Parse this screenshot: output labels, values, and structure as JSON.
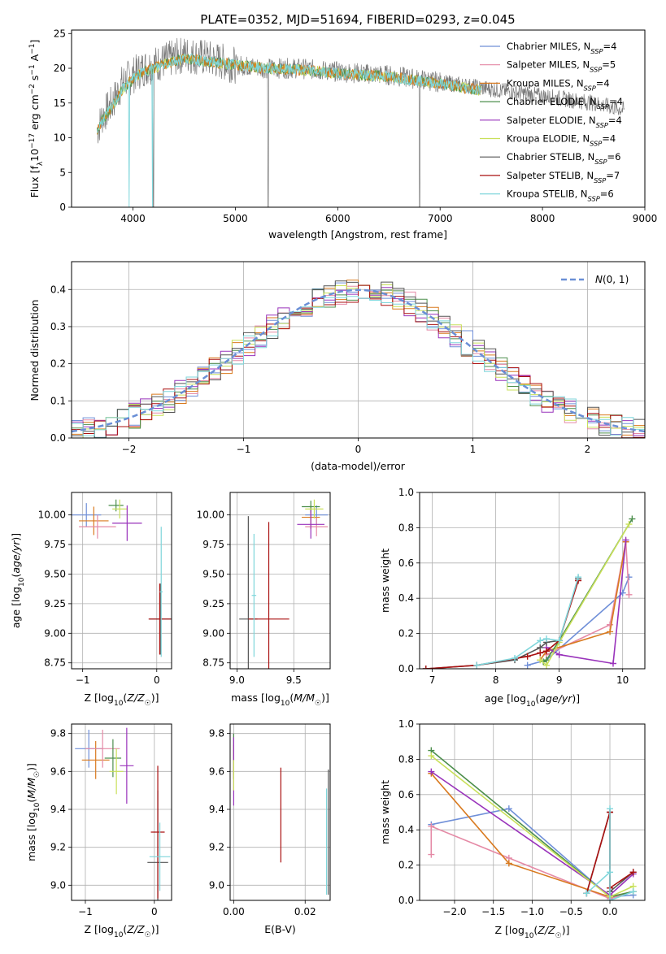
{
  "figure": {
    "title": "PLATE=0352, MJD=51694, FIBERID=0293, z=0.045",
    "colors": {
      "Chabrier MILES": "#6f8fd8",
      "Salpeter MILES": "#e58aa6",
      "Kroupa MILES": "#d97a1f",
      "Chabrier ELODIE": "#4d8f4d",
      "Salpeter ELODIE": "#9933bb",
      "Kroupa ELODIE": "#c9e05a",
      "Chabrier STELIB": "#555555",
      "Salpeter STELIB": "#aa1111",
      "Kroupa STELIB": "#7fd6db"
    }
  },
  "chart_data": [
    {
      "id": "spectrum",
      "type": "line",
      "xlabel": "wavelength [Angstrom, rest frame]",
      "ylabel": "Flux [f_λ10^-17 erg cm^-2 s^-1 A^-1]",
      "xlim": [
        3400,
        9000
      ],
      "ylim": [
        0,
        25.5
      ],
      "xticks": [
        "4000",
        "5000",
        "6000",
        "7000",
        "8000",
        "9000"
      ],
      "yticks": [
        "0",
        "5",
        "10",
        "15",
        "20",
        "25"
      ],
      "grid": false,
      "legend_position": "top-right",
      "legend": [
        {
          "label": "Chabrier MILES, N",
          "sub": "SSP",
          "val": "=4"
        },
        {
          "label": "Salpeter MILES, N",
          "sub": "SSP",
          "val": "=5"
        },
        {
          "label": "Kroupa MILES, N",
          "sub": "SSP",
          "val": "=4"
        },
        {
          "label": "Chabrier ELODIE, N",
          "sub": "SSP",
          "val": "=4"
        },
        {
          "label": "Salpeter ELODIE, N",
          "sub": "SSP",
          "val": "=4"
        },
        {
          "label": "Kroupa ELODIE, N",
          "sub": "SSP",
          "val": "=4"
        },
        {
          "label": "Chabrier STELIB, N",
          "sub": "SSP",
          "val": "=6"
        },
        {
          "label": "Salpeter STELIB, N",
          "sub": "SSP",
          "val": "=7"
        },
        {
          "label": "Kroupa STELIB, N",
          "sub": "SSP",
          "val": "=6"
        }
      ],
      "data_continuum": {
        "x": [
          3650,
          3700,
          3800,
          3900,
          4000,
          4100,
          4200,
          4300,
          4400,
          4500,
          4700,
          5000,
          5300,
          5600,
          6000,
          6500,
          7000,
          7500,
          8000,
          8500,
          8800
        ],
        "y": [
          11,
          13,
          15,
          18,
          19,
          20,
          20.5,
          21,
          21.5,
          22,
          21.5,
          20.5,
          20,
          20,
          19.5,
          19,
          18,
          17,
          16,
          15,
          14
        ]
      },
      "model_continuum": {
        "x": [
          3650,
          3700,
          3800,
          3900,
          4000,
          4100,
          4200,
          4300,
          4400,
          4500,
          4700,
          5000,
          5300,
          5600,
          6000,
          6500,
          7000,
          7400
        ],
        "y": [
          11,
          12.5,
          14.5,
          17,
          18.5,
          19.5,
          20,
          20.5,
          21,
          21.5,
          21,
          20.5,
          20,
          19.8,
          19.3,
          18.8,
          17.8,
          16.8
        ]
      }
    },
    {
      "id": "residuals",
      "type": "bar",
      "xlabel": "(data-model)/error",
      "ylabel": "Normed distribution",
      "xlim": [
        -2.5,
        2.5
      ],
      "ylim": [
        0,
        0.475
      ],
      "xticks": [
        "−2",
        "−1",
        "0",
        "1",
        "2"
      ],
      "yticks": [
        "0.0",
        "0.1",
        "0.2",
        "0.3",
        "0.4"
      ],
      "grid": true,
      "legend_position": "top-right",
      "legend_label": "N(0,1)",
      "bin_width": 0.1
    },
    {
      "id": "age_vs_Z",
      "type": "scatter",
      "xlabel": "Z [log10(Z/Z☉)]",
      "ylabel": "age  [log10(age/yr)]",
      "xlim": [
        -1.15,
        0.2
      ],
      "ylim": [
        8.7,
        10.19
      ],
      "xticks": [
        "−1",
        "0"
      ],
      "yticks": [
        "8.75",
        "9.00",
        "9.25",
        "9.50",
        "9.75",
        "10.00"
      ],
      "grid": true,
      "points": [
        {
          "x": -0.95,
          "y": 10.0,
          "xerr": 0.2,
          "yerr": 0.1,
          "m": "Chabrier MILES"
        },
        {
          "x": -0.85,
          "y": 9.95,
          "xerr": 0.2,
          "yerr": 0.12,
          "m": "Kroupa MILES"
        },
        {
          "x": -0.8,
          "y": 9.9,
          "xerr": 0.25,
          "yerr": 0.1,
          "m": "Salpeter MILES"
        },
        {
          "x": -0.55,
          "y": 10.08,
          "xerr": 0.1,
          "yerr": 0.05,
          "m": "Chabrier ELODIE"
        },
        {
          "x": -0.5,
          "y": 10.05,
          "xerr": 0.1,
          "yerr": 0.08,
          "m": "Kroupa ELODIE"
        },
        {
          "x": -0.4,
          "y": 9.93,
          "xerr": 0.2,
          "yerr": 0.15,
          "m": "Salpeter ELODIE"
        },
        {
          "x": 0.05,
          "y": 9.12,
          "xerr": 0.15,
          "yerr": 0.3,
          "m": "Chabrier STELIB"
        },
        {
          "x": 0.04,
          "y": 9.12,
          "xerr": 0.15,
          "yerr": 0.3,
          "m": "Salpeter STELIB"
        },
        {
          "x": 0.06,
          "y": 9.35,
          "xerr": 0.02,
          "yerr": 0.55,
          "m": "Kroupa STELIB"
        }
      ]
    },
    {
      "id": "age_vs_mass",
      "type": "scatter",
      "xlabel": "mass [log10(M/M☉)]",
      "xlim": [
        8.94,
        9.82
      ],
      "ylim": [
        8.7,
        10.19
      ],
      "xticks": [
        "9.0",
        "9.5"
      ],
      "yticks": [
        "8.75",
        "9.00",
        "9.25",
        "9.50",
        "9.75",
        "10.00"
      ],
      "grid": true,
      "points": [
        {
          "x": 9.7,
          "y": 10.0,
          "xerr": 0.1,
          "yerr": 0.08,
          "m": "Chabrier MILES"
        },
        {
          "x": 9.65,
          "y": 9.98,
          "xerr": 0.08,
          "yerr": 0.1,
          "m": "Kroupa MILES"
        },
        {
          "x": 9.7,
          "y": 9.9,
          "xerr": 0.1,
          "yerr": 0.08,
          "m": "Salpeter MILES"
        },
        {
          "x": 9.65,
          "y": 10.07,
          "xerr": 0.08,
          "yerr": 0.05,
          "m": "Chabrier ELODIE"
        },
        {
          "x": 9.68,
          "y": 10.05,
          "xerr": 0.08,
          "yerr": 0.08,
          "m": "Kroupa ELODIE"
        },
        {
          "x": 9.65,
          "y": 9.92,
          "xerr": 0.12,
          "yerr": 0.12,
          "m": "Salpeter ELODIE"
        },
        {
          "x": 9.1,
          "y": 9.12,
          "xerr": 0.08,
          "yerr": 0.87,
          "m": "Chabrier STELIB"
        },
        {
          "x": 9.28,
          "y": 9.12,
          "xerr": 0.18,
          "yerr": 0.82,
          "m": "Salpeter STELIB"
        },
        {
          "x": 9.15,
          "y": 9.32,
          "xerr": 0.02,
          "yerr": 0.52,
          "m": "Kroupa STELIB"
        }
      ]
    },
    {
      "id": "massweight_vs_age",
      "type": "line",
      "xlabel": "age  [log10(age/yr)]",
      "ylabel": "mass weight",
      "xlim": [
        6.8,
        10.35
      ],
      "ylim": [
        0,
        1.0
      ],
      "xticks": [
        "7",
        "8",
        "9",
        "10"
      ],
      "yticks": [
        "0.0",
        "0.2",
        "0.4",
        "0.6",
        "0.8",
        "1.0"
      ],
      "grid": true,
      "series": [
        {
          "m": "Chabrier MILES",
          "x": [
            8.5,
            8.8,
            10.0,
            10.1
          ],
          "y": [
            0.02,
            0.05,
            0.43,
            0.52
          ]
        },
        {
          "m": "Salpeter MILES",
          "x": [
            8.8,
            9.8,
            10.05,
            10.1
          ],
          "y": [
            0.08,
            0.25,
            0.72,
            0.42
          ]
        },
        {
          "m": "Kroupa MILES",
          "x": [
            8.7,
            8.8,
            9.8,
            10.05
          ],
          "y": [
            0.05,
            0.1,
            0.21,
            0.72
          ]
        },
        {
          "m": "Chabrier ELODIE",
          "x": [
            8.75,
            8.8,
            9.0,
            10.15
          ],
          "y": [
            0.04,
            0.05,
            0.16,
            0.85
          ]
        },
        {
          "m": "Salpeter ELODIE",
          "x": [
            8.8,
            9.0,
            9.85,
            10.05
          ],
          "y": [
            0.12,
            0.08,
            0.03,
            0.73
          ]
        },
        {
          "m": "Kroupa ELODIE",
          "x": [
            8.7,
            8.8,
            9.0,
            10.1
          ],
          "y": [
            0.05,
            0.02,
            0.15,
            0.82
          ]
        },
        {
          "m": "Chabrier STELIB",
          "x": [
            6.9,
            7.7,
            8.3,
            8.7,
            8.8,
            9.0,
            9.3
          ],
          "y": [
            0.0,
            0.02,
            0.05,
            0.12,
            0.15,
            0.16,
            0.51
          ]
        },
        {
          "m": "Salpeter STELIB",
          "x": [
            6.9,
            7.7,
            8.5,
            8.7,
            8.8,
            9.0,
            9.3
          ],
          "y": [
            0.0,
            0.02,
            0.07,
            0.09,
            0.1,
            0.16,
            0.5
          ]
        },
        {
          "m": "Kroupa STELIB",
          "x": [
            7.7,
            8.3,
            8.7,
            8.8,
            9.0,
            9.3
          ],
          "y": [
            0.02,
            0.06,
            0.16,
            0.17,
            0.16,
            0.52
          ]
        }
      ]
    },
    {
      "id": "mass_vs_Z",
      "type": "scatter",
      "xlabel": "Z [log10(Z/Z☉)]",
      "ylabel": "mass [log10(M/M☉)]",
      "xlim": [
        -1.2,
        0.25
      ],
      "ylim": [
        8.92,
        9.85
      ],
      "xticks": [
        "−1",
        "0"
      ],
      "yticks": [
        "9.0",
        "9.2",
        "9.4",
        "9.6",
        "9.8"
      ],
      "grid": true,
      "points": [
        {
          "x": -0.95,
          "y": 9.72,
          "xerr": 0.2,
          "yerr": 0.1,
          "m": "Chabrier MILES"
        },
        {
          "x": -0.85,
          "y": 9.66,
          "xerr": 0.2,
          "yerr": 0.1,
          "m": "Kroupa MILES"
        },
        {
          "x": -0.75,
          "y": 9.72,
          "xerr": 0.25,
          "yerr": 0.1,
          "m": "Salpeter MILES"
        },
        {
          "x": -0.6,
          "y": 9.67,
          "xerr": 0.12,
          "yerr": 0.1,
          "m": "Chabrier ELODIE"
        },
        {
          "x": -0.55,
          "y": 9.6,
          "xerr": 0.1,
          "yerr": 0.12,
          "m": "Kroupa ELODIE"
        },
        {
          "x": -0.4,
          "y": 9.63,
          "xerr": 0.1,
          "yerr": 0.2,
          "m": "Salpeter ELODIE"
        },
        {
          "x": 0.05,
          "y": 9.12,
          "xerr": 0.15,
          "yerr": 0.38,
          "m": "Chabrier STELIB"
        },
        {
          "x": 0.05,
          "y": 9.28,
          "xerr": 0.1,
          "yerr": 0.35,
          "m": "Salpeter STELIB"
        },
        {
          "x": 0.08,
          "y": 9.15,
          "xerr": 0.15,
          "yerr": 0.18,
          "m": "Kroupa STELIB"
        }
      ]
    },
    {
      "id": "mass_vs_EBV",
      "type": "scatter",
      "xlabel": "E(B-V)",
      "xlim": [
        -0.001,
        0.027
      ],
      "ylim": [
        8.92,
        9.85
      ],
      "xticks": [
        "0.00",
        "0.02"
      ],
      "yticks": [
        "9.0",
        "9.2",
        "9.4",
        "9.6",
        "9.8"
      ],
      "grid": true,
      "points": [
        {
          "x": 0.0,
          "y": 9.72,
          "yerr": 0.08,
          "m": "Chabrier MILES"
        },
        {
          "x": 0.0,
          "y": 9.68,
          "yerr": 0.12,
          "m": "Salpeter MILES"
        },
        {
          "x": 0.0,
          "y": 9.66,
          "yerr": 0.08,
          "m": "Kroupa MILES"
        },
        {
          "x": 0.0,
          "y": 9.68,
          "yerr": 0.12,
          "m": "Chabrier ELODIE"
        },
        {
          "x": 0.0,
          "y": 9.6,
          "yerr": 0.18,
          "m": "Salpeter ELODIE"
        },
        {
          "x": 0.0,
          "y": 9.58,
          "yerr": 0.08,
          "m": "Kroupa ELODIE"
        },
        {
          "x": 0.0265,
          "y": 9.28,
          "yerr": 0.33,
          "m": "Chabrier STELIB"
        },
        {
          "x": 0.0132,
          "y": 9.37,
          "yerr": 0.25,
          "m": "Salpeter STELIB"
        },
        {
          "x": 0.026,
          "y": 9.23,
          "yerr": 0.28,
          "m": "Kroupa STELIB"
        }
      ]
    },
    {
      "id": "massweight_vs_Z",
      "type": "line",
      "xlabel": "Z [log10(Z/Z☉)]",
      "ylabel": "mass weight",
      "xlim": [
        -2.45,
        0.45
      ],
      "ylim": [
        0,
        1.0
      ],
      "xticks": [
        "−2.0",
        "−1.5",
        "−1.0",
        "−0.5",
        "0.0"
      ],
      "yticks": [
        "0.0",
        "0.2",
        "0.4",
        "0.6",
        "0.8",
        "1.0"
      ],
      "grid": true,
      "series": [
        {
          "m": "Chabrier MILES",
          "x": [
            -2.3,
            -1.3,
            0.0,
            0.3
          ],
          "y": [
            0.43,
            0.52,
            0.02,
            0.03
          ]
        },
        {
          "m": "Salpeter MILES",
          "x": [
            -2.3,
            -2.3,
            -1.3,
            0.0,
            0.3
          ],
          "y": [
            0.26,
            0.42,
            0.24,
            0.01,
            0.05
          ]
        },
        {
          "m": "Kroupa MILES",
          "x": [
            -2.3,
            -1.3,
            0.0,
            0.3
          ],
          "y": [
            0.72,
            0.21,
            0.02,
            0.05
          ]
        },
        {
          "m": "Chabrier ELODIE",
          "x": [
            -2.3,
            0.0,
            0.3
          ],
          "y": [
            0.85,
            0.02,
            0.05
          ]
        },
        {
          "m": "Salpeter ELODIE",
          "x": [
            -2.3,
            0.0,
            0.3
          ],
          "y": [
            0.73,
            0.03,
            0.15
          ]
        },
        {
          "m": "Kroupa ELODIE",
          "x": [
            -2.3,
            0.0,
            0.3
          ],
          "y": [
            0.82,
            0.02,
            0.08
          ]
        },
        {
          "m": "Chabrier STELIB",
          "x": [
            -0.3,
            0.0,
            0.0,
            0.3
          ],
          "y": [
            0.04,
            0.5,
            0.05,
            0.16
          ]
        },
        {
          "m": "Salpeter STELIB",
          "x": [
            -0.3,
            0.0,
            0.0,
            0.3
          ],
          "y": [
            0.04,
            0.5,
            0.07,
            0.16
          ]
        },
        {
          "m": "Kroupa STELIB",
          "x": [
            -0.3,
            0.0,
            0.0,
            0.0,
            0.3
          ],
          "y": [
            0.04,
            0.16,
            0.52,
            0.0,
            0.05
          ]
        }
      ]
    }
  ]
}
